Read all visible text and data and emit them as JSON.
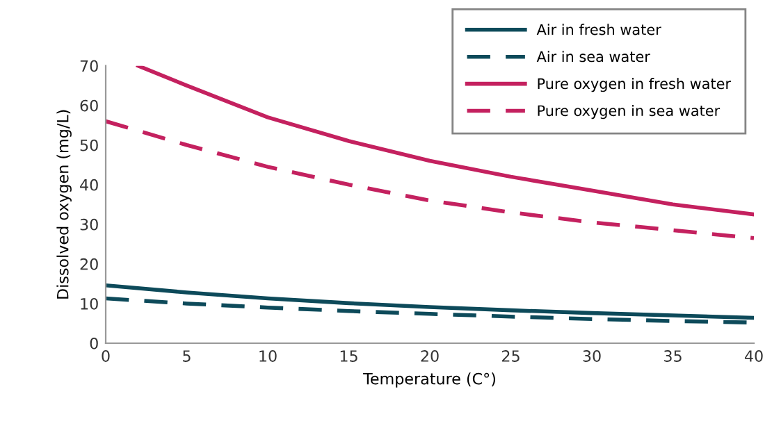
{
  "chart_data": {
    "type": "line",
    "xlabel": "Temperature (C°)",
    "ylabel": "Dissolved oxygen (mg/L)",
    "xlim": [
      0,
      40
    ],
    "ylim": [
      0,
      70
    ],
    "xticks": [
      0,
      5,
      10,
      15,
      20,
      25,
      30,
      35,
      40
    ],
    "yticks": [
      0,
      10,
      20,
      30,
      40,
      50,
      60,
      70
    ],
    "grid": false,
    "legend": "top right",
    "marker": "none",
    "series": [
      {
        "name": "Air in fresh water",
        "color": "#0d4a5a",
        "line_style": "solid",
        "x": [
          0,
          5,
          10,
          15,
          20,
          25,
          30,
          35,
          40
        ],
        "values": [
          14.6,
          12.8,
          11.3,
          10.1,
          9.1,
          8.3,
          7.6,
          7.0,
          6.4
        ]
      },
      {
        "name": "Air in sea water",
        "color": "#0d4a5a",
        "line_style": "dashed",
        "x": [
          0,
          5,
          10,
          15,
          20,
          25,
          30,
          35,
          40
        ],
        "values": [
          11.3,
          10.0,
          9.0,
          8.1,
          7.4,
          6.7,
          6.1,
          5.6,
          5.2
        ]
      },
      {
        "name": "Pure oxygen in fresh water",
        "color": "#c4215f",
        "line_style": "solid",
        "x": [
          2,
          5,
          10,
          15,
          20,
          25,
          30,
          35,
          40
        ],
        "values": [
          70,
          65,
          57,
          51,
          46,
          42,
          38.5,
          35,
          32.5
        ]
      },
      {
        "name": "Pure oxygen in sea water",
        "color": "#c4215f",
        "line_style": "dashed",
        "x": [
          0,
          5,
          10,
          15,
          20,
          25,
          30,
          35,
          40
        ],
        "values": [
          56,
          50,
          44.5,
          40,
          36,
          33,
          30.5,
          28.5,
          26.5
        ]
      }
    ]
  }
}
